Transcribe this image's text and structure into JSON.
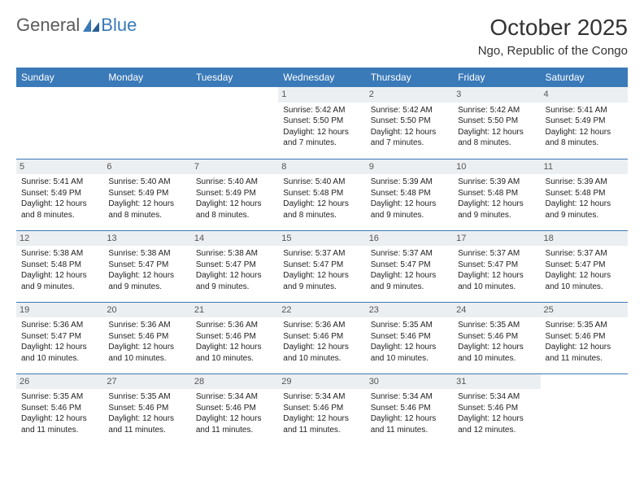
{
  "logo": {
    "part1": "General",
    "part2": "Blue"
  },
  "title": "October 2025",
  "location": "Ngo, Republic of the Congo",
  "colors": {
    "header_bg": "#3a7ab8",
    "header_text": "#ffffff",
    "daynum_bg": "#eceff1",
    "border": "#3a7ab8",
    "logo_gray": "#5a5a5a",
    "logo_blue": "#3a7ab8"
  },
  "day_headers": [
    "Sunday",
    "Monday",
    "Tuesday",
    "Wednesday",
    "Thursday",
    "Friday",
    "Saturday"
  ],
  "weeks": [
    [
      null,
      null,
      null,
      {
        "n": "1",
        "sr": "5:42 AM",
        "ss": "5:50 PM",
        "dl": "12 hours and 7 minutes."
      },
      {
        "n": "2",
        "sr": "5:42 AM",
        "ss": "5:50 PM",
        "dl": "12 hours and 7 minutes."
      },
      {
        "n": "3",
        "sr": "5:42 AM",
        "ss": "5:50 PM",
        "dl": "12 hours and 8 minutes."
      },
      {
        "n": "4",
        "sr": "5:41 AM",
        "ss": "5:49 PM",
        "dl": "12 hours and 8 minutes."
      }
    ],
    [
      {
        "n": "5",
        "sr": "5:41 AM",
        "ss": "5:49 PM",
        "dl": "12 hours and 8 minutes."
      },
      {
        "n": "6",
        "sr": "5:40 AM",
        "ss": "5:49 PM",
        "dl": "12 hours and 8 minutes."
      },
      {
        "n": "7",
        "sr": "5:40 AM",
        "ss": "5:49 PM",
        "dl": "12 hours and 8 minutes."
      },
      {
        "n": "8",
        "sr": "5:40 AM",
        "ss": "5:48 PM",
        "dl": "12 hours and 8 minutes."
      },
      {
        "n": "9",
        "sr": "5:39 AM",
        "ss": "5:48 PM",
        "dl": "12 hours and 9 minutes."
      },
      {
        "n": "10",
        "sr": "5:39 AM",
        "ss": "5:48 PM",
        "dl": "12 hours and 9 minutes."
      },
      {
        "n": "11",
        "sr": "5:39 AM",
        "ss": "5:48 PM",
        "dl": "12 hours and 9 minutes."
      }
    ],
    [
      {
        "n": "12",
        "sr": "5:38 AM",
        "ss": "5:48 PM",
        "dl": "12 hours and 9 minutes."
      },
      {
        "n": "13",
        "sr": "5:38 AM",
        "ss": "5:47 PM",
        "dl": "12 hours and 9 minutes."
      },
      {
        "n": "14",
        "sr": "5:38 AM",
        "ss": "5:47 PM",
        "dl": "12 hours and 9 minutes."
      },
      {
        "n": "15",
        "sr": "5:37 AM",
        "ss": "5:47 PM",
        "dl": "12 hours and 9 minutes."
      },
      {
        "n": "16",
        "sr": "5:37 AM",
        "ss": "5:47 PM",
        "dl": "12 hours and 9 minutes."
      },
      {
        "n": "17",
        "sr": "5:37 AM",
        "ss": "5:47 PM",
        "dl": "12 hours and 10 minutes."
      },
      {
        "n": "18",
        "sr": "5:37 AM",
        "ss": "5:47 PM",
        "dl": "12 hours and 10 minutes."
      }
    ],
    [
      {
        "n": "19",
        "sr": "5:36 AM",
        "ss": "5:47 PM",
        "dl": "12 hours and 10 minutes."
      },
      {
        "n": "20",
        "sr": "5:36 AM",
        "ss": "5:46 PM",
        "dl": "12 hours and 10 minutes."
      },
      {
        "n": "21",
        "sr": "5:36 AM",
        "ss": "5:46 PM",
        "dl": "12 hours and 10 minutes."
      },
      {
        "n": "22",
        "sr": "5:36 AM",
        "ss": "5:46 PM",
        "dl": "12 hours and 10 minutes."
      },
      {
        "n": "23",
        "sr": "5:35 AM",
        "ss": "5:46 PM",
        "dl": "12 hours and 10 minutes."
      },
      {
        "n": "24",
        "sr": "5:35 AM",
        "ss": "5:46 PM",
        "dl": "12 hours and 10 minutes."
      },
      {
        "n": "25",
        "sr": "5:35 AM",
        "ss": "5:46 PM",
        "dl": "12 hours and 11 minutes."
      }
    ],
    [
      {
        "n": "26",
        "sr": "5:35 AM",
        "ss": "5:46 PM",
        "dl": "12 hours and 11 minutes."
      },
      {
        "n": "27",
        "sr": "5:35 AM",
        "ss": "5:46 PM",
        "dl": "12 hours and 11 minutes."
      },
      {
        "n": "28",
        "sr": "5:34 AM",
        "ss": "5:46 PM",
        "dl": "12 hours and 11 minutes."
      },
      {
        "n": "29",
        "sr": "5:34 AM",
        "ss": "5:46 PM",
        "dl": "12 hours and 11 minutes."
      },
      {
        "n": "30",
        "sr": "5:34 AM",
        "ss": "5:46 PM",
        "dl": "12 hours and 11 minutes."
      },
      {
        "n": "31",
        "sr": "5:34 AM",
        "ss": "5:46 PM",
        "dl": "12 hours and 12 minutes."
      },
      null
    ]
  ],
  "labels": {
    "sunrise": "Sunrise:",
    "sunset": "Sunset:",
    "daylight": "Daylight:"
  }
}
